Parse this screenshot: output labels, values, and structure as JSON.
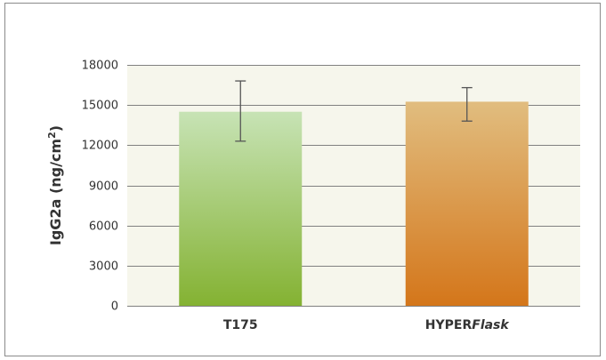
{
  "chart_data": {
    "type": "bar",
    "categories": [
      "T175",
      "HYPERFlask"
    ],
    "category_parts": [
      [
        {
          "text": "T175",
          "italic": false
        }
      ],
      [
        {
          "text": "HYPER",
          "italic": false
        },
        {
          "text": "Flask",
          "italic": true
        }
      ]
    ],
    "values": [
      14500,
      15250
    ],
    "error": [
      [
        12300,
        16800
      ],
      [
        13800,
        16300
      ]
    ],
    "ylabel": "IgG2a (ng/cm²)",
    "ylabel_main": "IgG2a (ng/cm",
    "ylabel_sup": "2",
    "ylabel_close": ")",
    "xlabel": "",
    "title": "",
    "ylim": [
      0,
      18000
    ],
    "yticks": [
      0,
      3000,
      6000,
      9000,
      12000,
      15000,
      18000
    ],
    "ytick_labels": [
      "0",
      "3000",
      "6000",
      "9000",
      "12000",
      "15000",
      "18000"
    ],
    "grid": true,
    "colors": {
      "plot_bg": "#f6f6ec",
      "gridline": "#808080",
      "error_bar": "#555555",
      "bar_gradients": [
        [
          "#c7e3b5",
          "#84b232"
        ],
        [
          "#e1bd7f",
          "#d4761a"
        ]
      ]
    }
  }
}
